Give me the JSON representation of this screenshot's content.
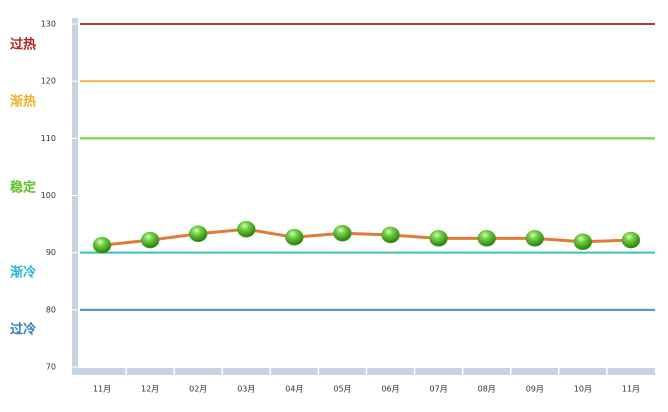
{
  "chart_data": {
    "type": "line",
    "categories": [
      "11月",
      "12月",
      "02月",
      "03月",
      "04月",
      "05月",
      "06月",
      "07月",
      "08月",
      "09月",
      "10月",
      "11月"
    ],
    "values": [
      91.3,
      92.2,
      93.3,
      94.1,
      92.7,
      93.4,
      93.1,
      92.5,
      92.5,
      92.5,
      91.9,
      92.2
    ],
    "color": "#e07b39",
    "marker_color": "#4caf2a",
    "ylim": [
      70,
      130
    ],
    "yticks": [
      70,
      80,
      90,
      100,
      110,
      120,
      130
    ],
    "reference_lines": [
      {
        "value": 130,
        "color": "#c0392b"
      },
      {
        "value": 120,
        "color": "#f2b84b"
      },
      {
        "value": 110,
        "color": "#6fcf3a"
      },
      {
        "value": 90,
        "color": "#3cc0b0"
      },
      {
        "value": 80,
        "color": "#4a8fd0"
      }
    ],
    "zone_labels": [
      {
        "text": "过热",
        "color": "#b22222"
      },
      {
        "text": "渐热",
        "color": "#f0b030"
      },
      {
        "text": "稳定",
        "color": "#5cbf2a"
      },
      {
        "text": "渐冷",
        "color": "#2bb5d6"
      },
      {
        "text": "过冷",
        "color": "#2a7fc0"
      }
    ]
  }
}
